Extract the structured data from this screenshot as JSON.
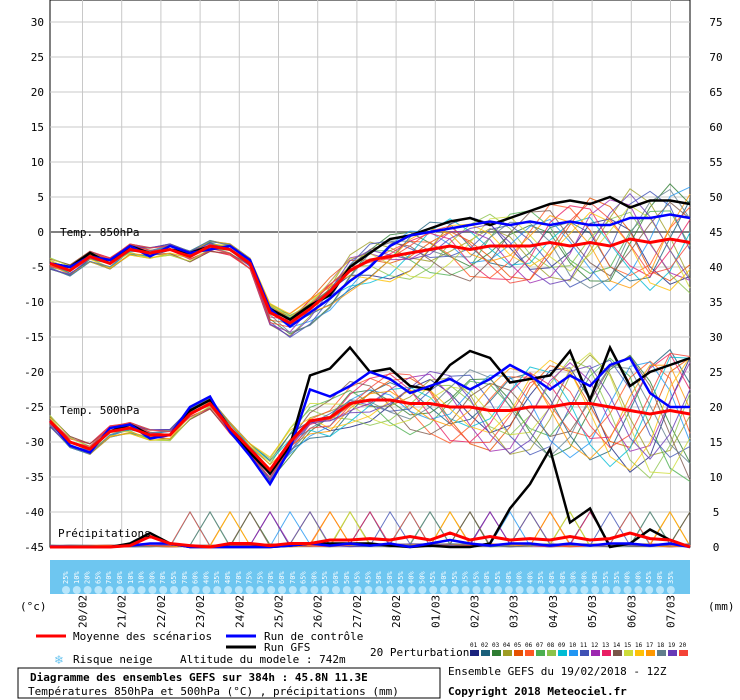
{
  "chart_data": {
    "type": "line",
    "title": "Diagramme des ensembles GEFS sur 384h : 45.8N 11.3E",
    "subtitle": "Températures 850hPa et 500hPa (°C) , précipitations (mm)",
    "left_axis_unit": "(°c)",
    "right_axis_unit": "(mm)",
    "left_ticks": [
      30,
      25,
      20,
      15,
      10,
      5,
      0,
      -5,
      -10,
      -15,
      -20,
      -25,
      -30,
      -35,
      -40,
      -45
    ],
    "right_ticks": [
      75,
      70,
      65,
      60,
      55,
      50,
      45,
      40,
      35,
      30,
      25,
      20,
      15,
      10,
      5,
      0
    ],
    "ylim": [
      -45,
      30
    ],
    "dates": [
      "20/02",
      "21/02",
      "22/02",
      "23/02",
      "24/02",
      "25/02",
      "26/02",
      "27/02",
      "28/02",
      "01/03",
      "02/03",
      "03/03",
      "04/03",
      "05/03",
      "06/03",
      "07/03"
    ],
    "section_labels": {
      "t850": "Temp. 850hPa",
      "t500": "Temp. 500hPa",
      "precip": "Précipitations"
    },
    "snow_risk": [
      "25%",
      "10%",
      "20%",
      "65%",
      "70%",
      "60%",
      "10%",
      "10%",
      "30%",
      "70%",
      "65%",
      "70%",
      "60%",
      "40%",
      "35%",
      "40%",
      "70%",
      "75%",
      "75%",
      "70%",
      "60%",
      "70%",
      "65%",
      "50%",
      "55%",
      "60%",
      "50%",
      "45%",
      "45%",
      "50%",
      "50%",
      "45%",
      "40%",
      "50%",
      "45%",
      "40%",
      "45%",
      "35%",
      "45%",
      "40%",
      "45%",
      "40%",
      "40%",
      "40%",
      "35%",
      "40%",
      "40%",
      "30%",
      "40%",
      "40%",
      "35%",
      "35%",
      "40%",
      "40%",
      "45%",
      "40%",
      "35%"
    ],
    "series": [
      {
        "name": "Moyenne des scénarios",
        "color": "#ff0000",
        "t850": [
          -4.5,
          -5.5,
          -3.5,
          -4.5,
          -2.5,
          -3.0,
          -2.5,
          -3.5,
          -2.0,
          -2.5,
          -4.5,
          -11.5,
          -13.0,
          -11.0,
          -8.5,
          -5.5,
          -4.0,
          -3.5,
          -3.0,
          -2.5,
          -2.0,
          -2.5,
          -2.0,
          -2.0,
          -2.0,
          -1.5,
          -2.0,
          -1.5,
          -2.0,
          -1.0,
          -1.5,
          -1.0,
          -1.5
        ],
        "t500": [
          -27.0,
          -30.0,
          -31.0,
          -28.5,
          -28.0,
          -29.0,
          -29.0,
          -26.0,
          -24.5,
          -28.0,
          -31.0,
          -34.0,
          -30.0,
          -27.0,
          -26.5,
          -24.5,
          -24.0,
          -24.0,
          -24.5,
          -24.5,
          -25.0,
          -25.0,
          -25.5,
          -25.5,
          -25.0,
          -25.0,
          -24.5,
          -24.5,
          -25.0,
          -25.5,
          -26.0,
          -25.5,
          -26.0
        ],
        "precip": [
          -45.0,
          -45.0,
          -45.0,
          -45.0,
          -44.8,
          -43.5,
          -44.5,
          -44.8,
          -45.0,
          -44.5,
          -44.5,
          -44.8,
          -44.5,
          -44.5,
          -44.0,
          -44.0,
          -43.8,
          -44.0,
          -43.5,
          -44.0,
          -43.0,
          -44.0,
          -43.5,
          -44.0,
          -43.8,
          -44.0,
          -43.5,
          -44.0,
          -43.8,
          -43.0,
          -43.8,
          -44.0,
          -45.0
        ]
      },
      {
        "name": "Run de contrôle",
        "color": "#0000ff",
        "t850": [
          -4.5,
          -5.0,
          -3.5,
          -4.0,
          -2.0,
          -3.5,
          -2.0,
          -3.0,
          -2.5,
          -2.0,
          -4.0,
          -11.0,
          -13.5,
          -11.5,
          -9.5,
          -7.0,
          -5.0,
          -2.0,
          -0.5,
          0.0,
          0.5,
          1.0,
          1.5,
          1.0,
          1.5,
          1.0,
          1.5,
          1.0,
          1.0,
          2.0,
          2.0,
          2.5,
          2.0
        ],
        "t500": [
          -27.0,
          -30.5,
          -31.5,
          -28.0,
          -27.5,
          -29.5,
          -29.0,
          -25.0,
          -23.5,
          -28.5,
          -32.0,
          -36.0,
          -31.0,
          -22.5,
          -23.5,
          -22.0,
          -20.0,
          -21.0,
          -23.0,
          -22.0,
          -21.0,
          -22.5,
          -21.0,
          -19.0,
          -20.5,
          -22.5,
          -20.5,
          -22.0,
          -19.0,
          -18.0,
          -23.0,
          -25.0,
          -25.0
        ],
        "precip": [
          -45.0,
          -45.0,
          -45.0,
          -45.0,
          -44.8,
          -44.5,
          -44.5,
          -45.0,
          -45.0,
          -45.0,
          -45.0,
          -45.0,
          -44.8,
          -44.5,
          -44.8,
          -44.5,
          -44.8,
          -44.5,
          -45.0,
          -44.5,
          -44.0,
          -44.5,
          -44.8,
          -44.5,
          -44.5,
          -44.8,
          -44.5,
          -44.8,
          -44.5,
          -44.5,
          -44.8,
          -44.5,
          -45.0
        ]
      },
      {
        "name": "Run GFS",
        "color": "#000000",
        "t850": [
          -4.5,
          -5.0,
          -3.0,
          -4.5,
          -2.0,
          -3.0,
          -2.5,
          -3.0,
          -2.0,
          -2.5,
          -4.5,
          -11.0,
          -12.5,
          -10.5,
          -9.0,
          -5.0,
          -3.0,
          -1.0,
          -0.5,
          0.5,
          1.5,
          2.0,
          1.0,
          2.0,
          3.0,
          4.0,
          4.5,
          4.0,
          5.0,
          3.5,
          4.5,
          4.5,
          4.0
        ],
        "t500": [
          -27.0,
          -30.0,
          -31.0,
          -28.5,
          -27.5,
          -29.0,
          -29.0,
          -25.5,
          -24.0,
          -28.0,
          -31.5,
          -34.5,
          -30.5,
          -20.5,
          -19.5,
          -16.5,
          -20.0,
          -19.5,
          -22.0,
          -22.5,
          -19.0,
          -17.0,
          -18.0,
          -21.5,
          -21.0,
          -20.5,
          -17.0,
          -24.0,
          -16.5,
          -22.0,
          -20.0,
          -19.0,
          -18.0
        ],
        "precip": [
          -45.0,
          -45.0,
          -45.0,
          -45.0,
          -44.5,
          -43.0,
          -44.5,
          -45.0,
          -45.0,
          -45.0,
          -45.0,
          -45.0,
          -44.8,
          -44.5,
          -44.5,
          -44.5,
          -44.5,
          -44.8,
          -45.0,
          -44.8,
          -45.0,
          -45.0,
          -44.5,
          -39.5,
          -36.0,
          -31.0,
          -41.5,
          -39.5,
          -45.0,
          -44.5,
          -42.5,
          -44.0,
          -45.0
        ]
      }
    ],
    "perturbation_colors": [
      "#1a237e",
      "#1a5f7a",
      "#2e7d32",
      "#9e9d24",
      "#e65100",
      "#ff5722",
      "#4caf50",
      "#8bc34a",
      "#00bcd4",
      "#2196f3",
      "#3f51b5",
      "#9c27b0",
      "#e91e63",
      "#795548",
      "#cddc39",
      "#ffc107",
      "#ff9800",
      "#607d8b",
      "#673ab7",
      "#f44336"
    ],
    "grid": true
  },
  "legend": {
    "mean": "Moyenne des scénarios",
    "control": "Run de contrôle",
    "gfs": "Run GFS",
    "perturbations": "20 Perturbations",
    "pert_numbers": [
      "01",
      "02",
      "03",
      "04",
      "05",
      "06",
      "07",
      "08",
      "09",
      "10",
      "11",
      "12",
      "13",
      "14",
      "15",
      "16",
      "17",
      "18",
      "19",
      "20"
    ],
    "snow": "Risque neige",
    "altitude": "Altitude du modele : 742m"
  },
  "footer": {
    "title": "Diagramme des ensembles GEFS sur 384h : 45.8N 11.3E",
    "subtitle": "Températures 850hPa et 500hPa (°C) , précipitations (mm)",
    "run": "Ensemble GEFS du 19/02/2018 - 12Z",
    "copyright": "Copyright 2018 Meteociel.fr"
  },
  "colors": {
    "mean": "#ff0000",
    "control": "#0000ff",
    "gfs": "#000000",
    "snow": "#6ec6f0"
  }
}
